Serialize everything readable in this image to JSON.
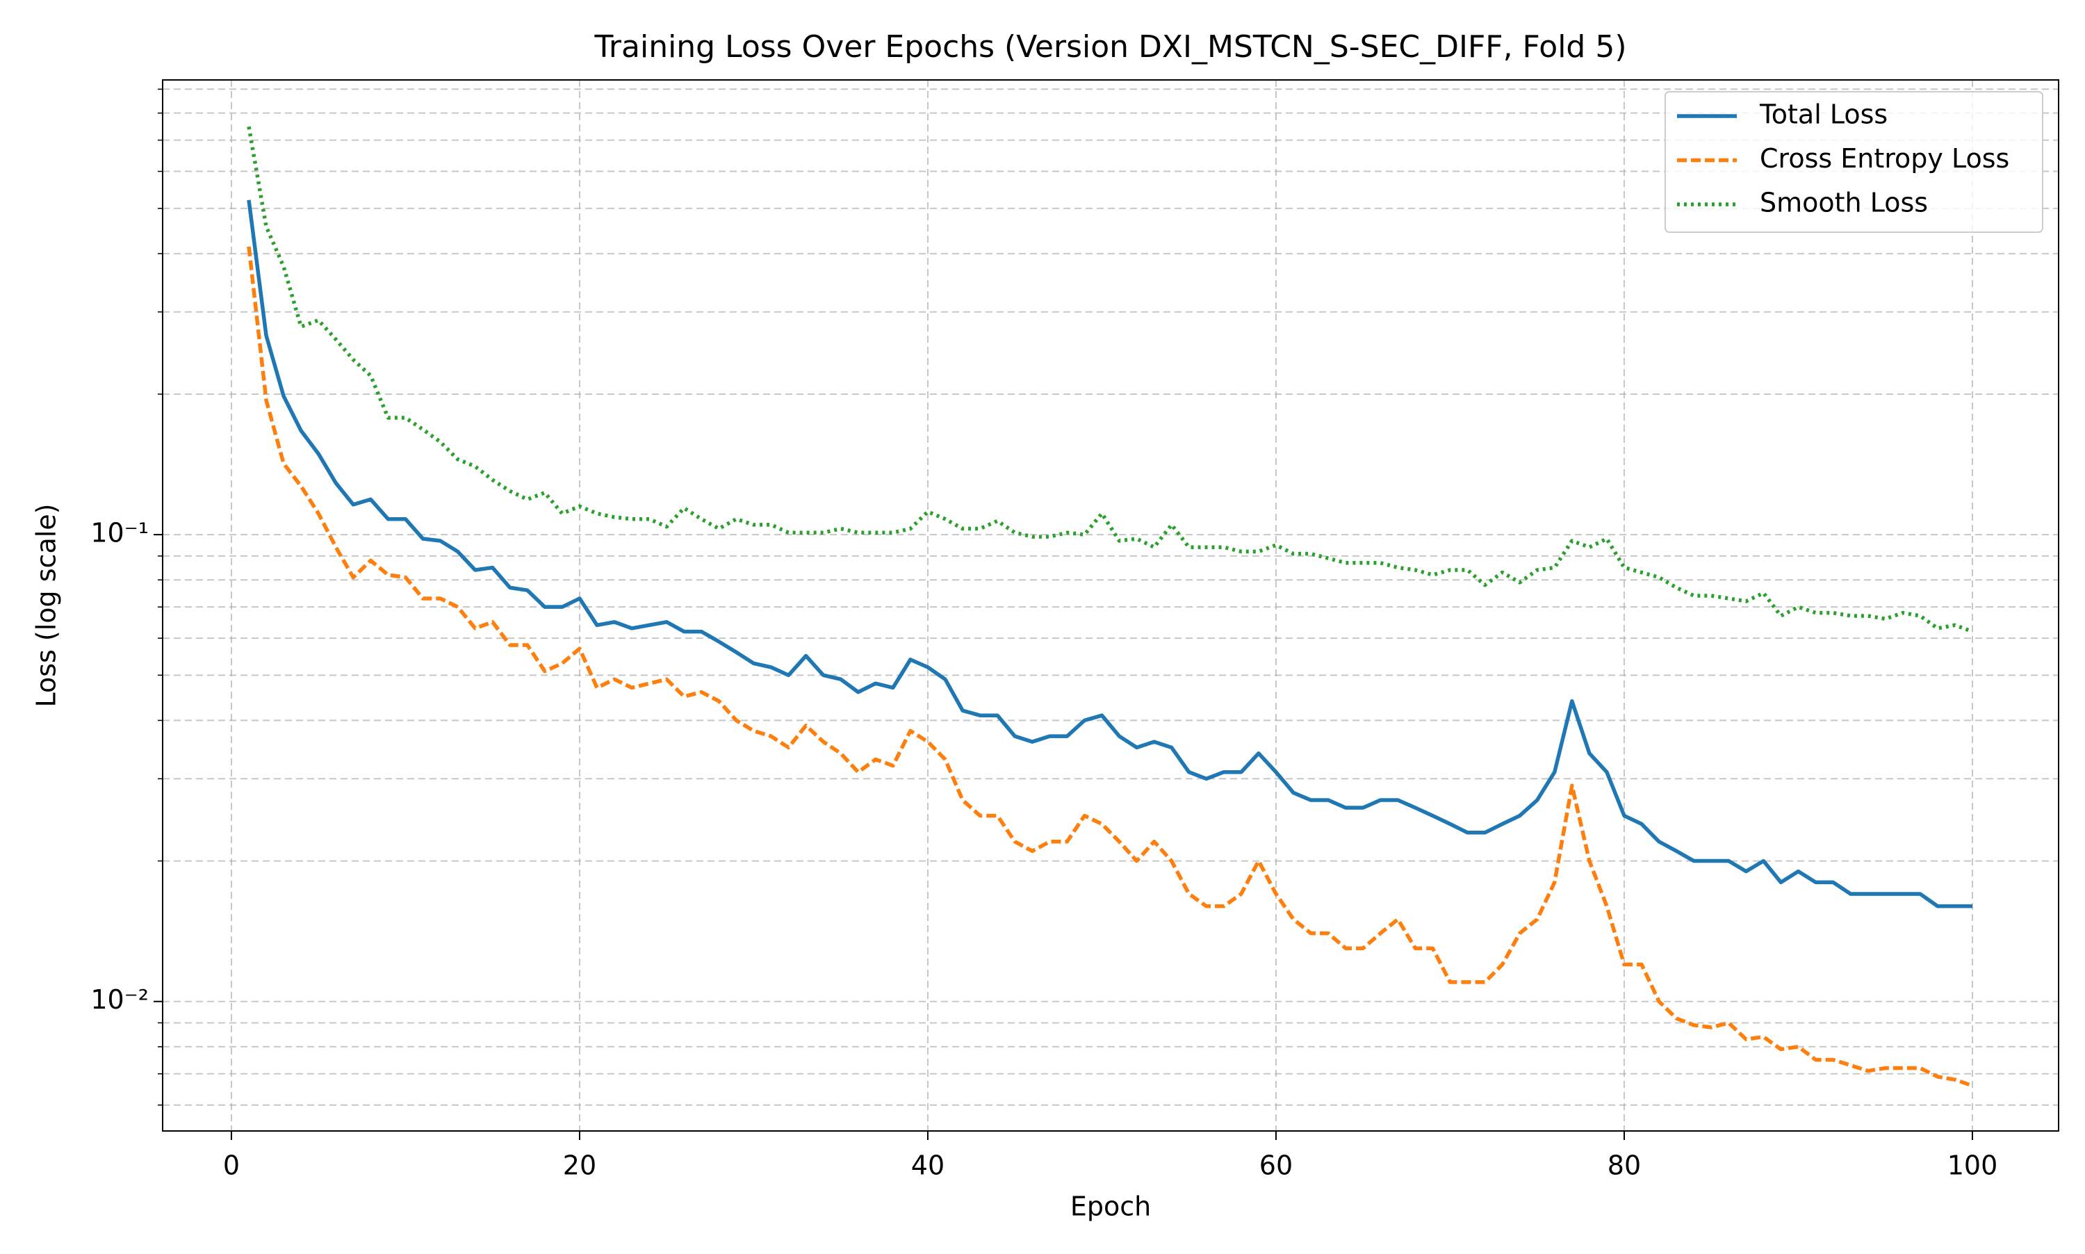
{
  "chart_data": {
    "type": "line",
    "title": "Training Loss Over Epochs (Version DXI_MSTCN_S-SEC_DIFF, Fold 5)",
    "xlabel": "Epoch",
    "ylabel": "Loss (log scale)",
    "y_scale": "log",
    "grid": true,
    "legend_loc": "upper right",
    "xlim": [
      -3.95,
      104.95
    ],
    "xticks": [
      0,
      20,
      40,
      60,
      80,
      100
    ],
    "ylim": [
      0.00528,
      0.942
    ],
    "yticks": [
      {
        "value": 0.01,
        "label": "10⁻²"
      },
      {
        "value": 0.1,
        "label": "10⁻¹"
      }
    ],
    "yminorticks": [
      0.006,
      0.007,
      0.008,
      0.009,
      0.02,
      0.03,
      0.04,
      0.05,
      0.06,
      0.07,
      0.08,
      0.09,
      0.2,
      0.3,
      0.4,
      0.5,
      0.6,
      0.7,
      0.8,
      0.9
    ],
    "x": [
      1,
      2,
      3,
      4,
      5,
      6,
      7,
      8,
      9,
      10,
      11,
      12,
      13,
      14,
      15,
      16,
      17,
      18,
      19,
      20,
      21,
      22,
      23,
      24,
      25,
      26,
      27,
      28,
      29,
      30,
      31,
      32,
      33,
      34,
      35,
      36,
      37,
      38,
      39,
      40,
      41,
      42,
      43,
      44,
      45,
      46,
      47,
      48,
      49,
      50,
      51,
      52,
      53,
      54,
      55,
      56,
      57,
      58,
      59,
      60,
      61,
      62,
      63,
      64,
      65,
      66,
      67,
      68,
      69,
      70,
      71,
      72,
      73,
      74,
      75,
      76,
      77,
      78,
      79,
      80,
      81,
      82,
      83,
      84,
      85,
      86,
      87,
      88,
      89,
      90,
      91,
      92,
      93,
      94,
      95,
      96,
      97,
      98,
      99,
      100
    ],
    "series": [
      {
        "name": "Total Loss",
        "color": "#1f77b4",
        "dash": "solid",
        "values": [
          0.521,
          0.267,
          0.198,
          0.167,
          0.149,
          0.129,
          0.116,
          0.119,
          0.108,
          0.108,
          0.098,
          0.097,
          0.092,
          0.084,
          0.085,
          0.077,
          0.076,
          0.07,
          0.07,
          0.073,
          0.064,
          0.065,
          0.063,
          0.064,
          0.065,
          0.062,
          0.062,
          0.059,
          0.056,
          0.053,
          0.052,
          0.05,
          0.055,
          0.05,
          0.049,
          0.046,
          0.048,
          0.047,
          0.054,
          0.052,
          0.049,
          0.042,
          0.041,
          0.041,
          0.037,
          0.036,
          0.037,
          0.037,
          0.04,
          0.041,
          0.037,
          0.035,
          0.036,
          0.035,
          0.031,
          0.03,
          0.031,
          0.031,
          0.034,
          0.031,
          0.028,
          0.027,
          0.027,
          0.026,
          0.026,
          0.027,
          0.027,
          0.026,
          0.025,
          0.024,
          0.023,
          0.023,
          0.024,
          0.025,
          0.027,
          0.031,
          0.044,
          0.034,
          0.031,
          0.025,
          0.024,
          0.022,
          0.021,
          0.02,
          0.02,
          0.02,
          0.019,
          0.02,
          0.018,
          0.019,
          0.018,
          0.018,
          0.017,
          0.017,
          0.017,
          0.017,
          0.017,
          0.016,
          0.016,
          0.016
        ]
      },
      {
        "name": "Cross Entropy Loss",
        "color": "#ff7f0e",
        "dash": "dashed",
        "values": [
          0.414,
          0.194,
          0.142,
          0.127,
          0.111,
          0.094,
          0.081,
          0.088,
          0.082,
          0.081,
          0.073,
          0.073,
          0.07,
          0.063,
          0.065,
          0.058,
          0.058,
          0.051,
          0.053,
          0.057,
          0.047,
          0.049,
          0.047,
          0.048,
          0.049,
          0.045,
          0.046,
          0.044,
          0.04,
          0.038,
          0.037,
          0.035,
          0.039,
          0.036,
          0.034,
          0.031,
          0.033,
          0.032,
          0.038,
          0.036,
          0.033,
          0.027,
          0.025,
          0.025,
          0.022,
          0.021,
          0.022,
          0.022,
          0.025,
          0.024,
          0.022,
          0.02,
          0.022,
          0.02,
          0.017,
          0.016,
          0.016,
          0.017,
          0.02,
          0.017,
          0.015,
          0.014,
          0.014,
          0.013,
          0.013,
          0.014,
          0.015,
          0.013,
          0.013,
          0.011,
          0.011,
          0.011,
          0.012,
          0.014,
          0.015,
          0.018,
          0.029,
          0.02,
          0.016,
          0.012,
          0.012,
          0.01,
          0.0092,
          0.0089,
          0.0088,
          0.009,
          0.0083,
          0.0084,
          0.0079,
          0.008,
          0.0075,
          0.0075,
          0.0073,
          0.0071,
          0.0072,
          0.0072,
          0.0072,
          0.0069,
          0.0068,
          0.0066
        ]
      },
      {
        "name": "Smooth Loss",
        "color": "#2ca02c",
        "dash": "dotted",
        "values": [
          0.748,
          0.457,
          0.375,
          0.279,
          0.288,
          0.262,
          0.237,
          0.219,
          0.178,
          0.178,
          0.168,
          0.158,
          0.145,
          0.14,
          0.131,
          0.124,
          0.119,
          0.123,
          0.111,
          0.115,
          0.111,
          0.109,
          0.108,
          0.108,
          0.104,
          0.114,
          0.108,
          0.103,
          0.108,
          0.105,
          0.105,
          0.101,
          0.101,
          0.101,
          0.103,
          0.101,
          0.101,
          0.101,
          0.103,
          0.112,
          0.108,
          0.103,
          0.103,
          0.107,
          0.101,
          0.099,
          0.099,
          0.101,
          0.1,
          0.111,
          0.097,
          0.098,
          0.094,
          0.105,
          0.094,
          0.094,
          0.094,
          0.092,
          0.092,
          0.095,
          0.091,
          0.091,
          0.089,
          0.087,
          0.087,
          0.087,
          0.085,
          0.084,
          0.082,
          0.084,
          0.084,
          0.078,
          0.083,
          0.079,
          0.084,
          0.085,
          0.097,
          0.094,
          0.098,
          0.085,
          0.083,
          0.081,
          0.077,
          0.074,
          0.074,
          0.073,
          0.072,
          0.075,
          0.067,
          0.07,
          0.068,
          0.068,
          0.067,
          0.067,
          0.066,
          0.068,
          0.067,
          0.063,
          0.064,
          0.062
        ]
      }
    ]
  }
}
